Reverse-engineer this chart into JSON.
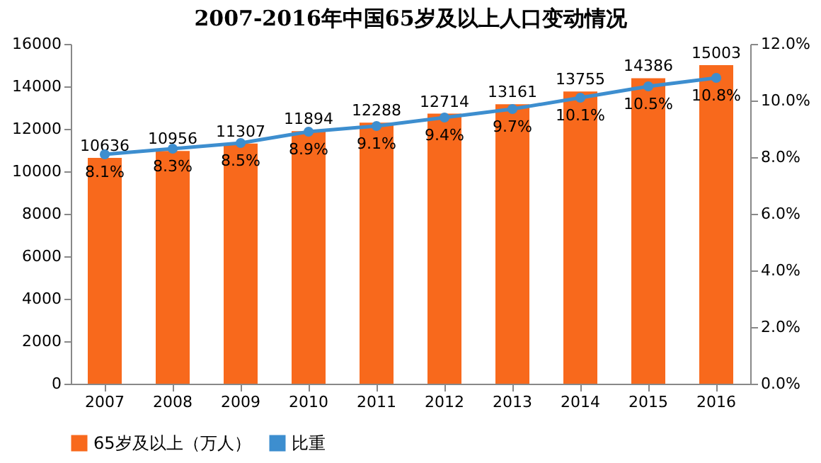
{
  "chart_data": {
    "type": "bar",
    "title": "2007-2016年中国65岁及以上人口变动情况",
    "categories": [
      "2007",
      "2008",
      "2009",
      "2010",
      "2011",
      "2012",
      "2013",
      "2014",
      "2015",
      "2016"
    ],
    "series": [
      {
        "name": "65岁及以上（万人）",
        "color": "#f8691c",
        "values": [
          10636,
          10956,
          11307,
          11894,
          12288,
          12714,
          13161,
          13755,
          14386,
          15003
        ],
        "value_labels": [
          "10636",
          "10956",
          "11307",
          "11894",
          "12288",
          "12714",
          "13161",
          "13755",
          "14386",
          "15003"
        ]
      },
      {
        "name": "比重",
        "type": "line",
        "axis": "y2",
        "color": "#3d8ecf",
        "values": [
          8.1,
          8.3,
          8.5,
          8.9,
          9.1,
          9.4,
          9.7,
          10.1,
          10.5,
          10.8
        ],
        "value_labels": [
          "8.1%",
          "8.3%",
          "8.5%",
          "8.9%",
          "9.1%",
          "9.4%",
          "9.7%",
          "10.1%",
          "10.5%",
          "10.8%"
        ]
      }
    ],
    "ylim": [
      0,
      16000
    ],
    "yticks": [
      0,
      2000,
      4000,
      6000,
      8000,
      10000,
      12000,
      14000,
      16000
    ],
    "y2lim": [
      0,
      12
    ],
    "y2ticks": [
      {
        "value": 0,
        "label": "0.0%"
      },
      {
        "value": 2,
        "label": "2.0%"
      },
      {
        "value": 4,
        "label": "4.0%"
      },
      {
        "value": 6,
        "label": "6.0%"
      },
      {
        "value": 8,
        "label": "8.0%"
      },
      {
        "value": 10,
        "label": "10.0%"
      },
      {
        "value": 12,
        "label": "12.0%"
      }
    ],
    "legend": "bottom",
    "marker": "circle"
  }
}
